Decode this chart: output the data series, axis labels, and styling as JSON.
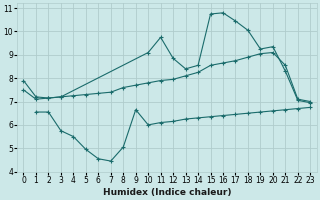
{
  "xlabel": "Humidex (Indice chaleur)",
  "bg_color": "#cce8e8",
  "grid_color": "#b0cccc",
  "line_color": "#1a6b6b",
  "xlim": [
    -0.5,
    23.5
  ],
  "ylim": [
    4,
    11.2
  ],
  "xticks": [
    0,
    1,
    2,
    3,
    4,
    5,
    6,
    7,
    8,
    9,
    10,
    11,
    12,
    13,
    14,
    15,
    16,
    17,
    18,
    19,
    20,
    21,
    22,
    23
  ],
  "yticks": [
    4,
    5,
    6,
    7,
    8,
    9,
    10,
    11
  ],
  "line1_x": [
    0,
    1,
    2,
    3,
    10,
    11,
    12,
    13,
    14,
    15,
    16,
    17,
    18,
    19,
    20,
    21,
    22,
    23
  ],
  "line1_y": [
    7.9,
    7.2,
    7.15,
    7.2,
    9.1,
    9.75,
    8.85,
    8.4,
    8.55,
    10.75,
    10.8,
    10.45,
    10.05,
    9.25,
    9.35,
    8.3,
    7.05,
    6.95
  ],
  "line2_x": [
    0,
    1,
    2,
    3,
    4,
    5,
    6,
    7,
    8,
    9,
    10,
    11,
    12,
    13,
    14,
    15,
    16,
    17,
    18,
    19,
    20,
    21,
    22,
    23
  ],
  "line2_y": [
    7.5,
    7.1,
    7.15,
    7.2,
    7.25,
    7.3,
    7.35,
    7.4,
    7.6,
    7.7,
    7.8,
    7.9,
    7.95,
    8.1,
    8.25,
    8.55,
    8.65,
    8.75,
    8.9,
    9.05,
    9.1,
    8.55,
    7.1,
    7.0
  ],
  "line3_x": [
    1,
    2,
    3,
    4,
    5,
    6,
    7,
    8,
    9,
    10,
    11,
    12,
    13,
    14,
    15,
    16,
    17,
    18,
    19,
    20,
    21,
    22,
    23
  ],
  "line3_y": [
    6.55,
    6.55,
    5.75,
    5.5,
    4.95,
    4.55,
    4.45,
    5.05,
    6.65,
    6.0,
    6.1,
    6.15,
    6.25,
    6.3,
    6.35,
    6.4,
    6.45,
    6.5,
    6.55,
    6.6,
    6.65,
    6.7,
    6.75
  ],
  "tick_fontsize": 5.5,
  "xlabel_fontsize": 6.5
}
